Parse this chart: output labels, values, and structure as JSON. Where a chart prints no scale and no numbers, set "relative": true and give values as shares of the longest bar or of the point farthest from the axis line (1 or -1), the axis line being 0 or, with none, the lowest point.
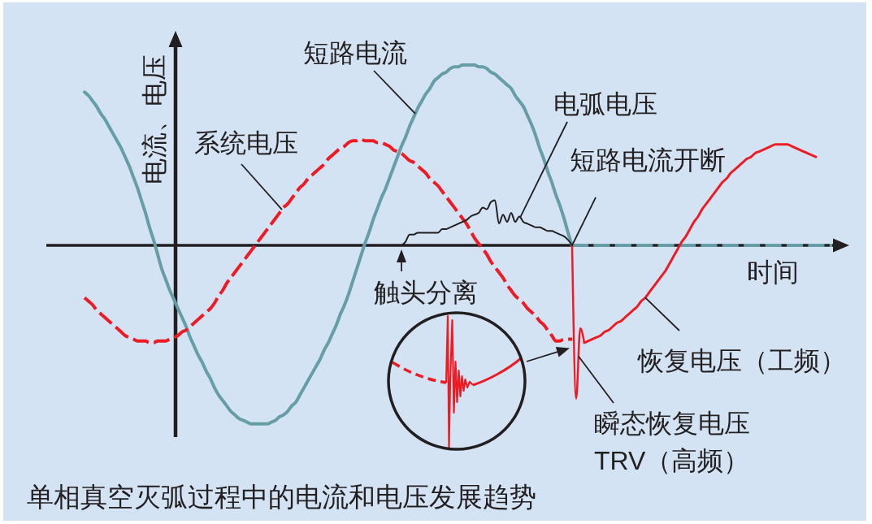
{
  "chart_data": {
    "type": "line",
    "relative": true,
    "title": "单相真空灭弧过程中的电流和电压发展趋势",
    "xlabel": "时间",
    "ylabel": "电流、电压",
    "categories": [
      null,
      null,
      null,
      null,
      null,
      null,
      null,
      null,
      null,
      null,
      null,
      null,
      null,
      null,
      null,
      null,
      null,
      null,
      null,
      null,
      null,
      null,
      null,
      null,
      null,
      null,
      null,
      null,
      null,
      null,
      null,
      null,
      null,
      null,
      null,
      null,
      null,
      null,
      null,
      null,
      null,
      null,
      null,
      null,
      null,
      null,
      null,
      null,
      null,
      null,
      null,
      null,
      null,
      null,
      null,
      null,
      null,
      null,
      null,
      null,
      null,
      null,
      null,
      null,
      null,
      null,
      null,
      null,
      null,
      null,
      null,
      null,
      null,
      null,
      null,
      null,
      null,
      null,
      null,
      null,
      null,
      null,
      null,
      null,
      null,
      null,
      null,
      null,
      null,
      null,
      null,
      null,
      null,
      null,
      null,
      null,
      null,
      null,
      null,
      null,
      null,
      null,
      null,
      null,
      null,
      null,
      null,
      null,
      null,
      null,
      null,
      null,
      null,
      null,
      null,
      null,
      null,
      null,
      null,
      null,
      null,
      null,
      null,
      null,
      null,
      null,
      null,
      null,
      null,
      null,
      null,
      null,
      null,
      null,
      null,
      null,
      null,
      null,
      null,
      null,
      null,
      null,
      null,
      null,
      null,
      null,
      null,
      null,
      null,
      null,
      null,
      null,
      null,
      null,
      null,
      null,
      null,
      null,
      null,
      null,
      null,
      null,
      null,
      null,
      null,
      null,
      null,
      null,
      null,
      null,
      null,
      null,
      null,
      null,
      null,
      null,
      null,
      null,
      null,
      null,
      null,
      null,
      null,
      null,
      null,
      null,
      null,
      null,
      null,
      null,
      null,
      null,
      null,
      null,
      null,
      null,
      null,
      null
    ],
    "series": [
      {
        "name": "短路电流",
        "color": "#659ea6",
        "line_style": "solid",
        "values": [
          null,
          null,
          null,
          null,
          null,
          null,
          null,
          null,
          null,
          0.85,
          0.83,
          0.8,
          0.77,
          0.73,
          0.7,
          0.66,
          0.62,
          0.58,
          0.54,
          0.49,
          0.44,
          0.38,
          0.32,
          0.25,
          0.18,
          0.1,
          0.03,
          -0.05,
          -0.13,
          -0.19,
          -0.25,
          -0.3,
          -0.35,
          -0.4,
          -0.45,
          -0.51,
          -0.56,
          -0.61,
          -0.65,
          -0.7,
          -0.74,
          -0.79,
          -0.83,
          -0.86,
          -0.89,
          -0.92,
          -0.94,
          -0.96,
          -0.97,
          -0.98,
          -0.99,
          -0.99,
          -0.99,
          -0.99,
          -0.99,
          -0.98,
          -0.97,
          -0.95,
          -0.94,
          -0.92,
          -0.89,
          -0.87,
          -0.83,
          -0.79,
          -0.75,
          -0.71,
          -0.67,
          -0.63,
          -0.58,
          -0.54,
          -0.49,
          -0.44,
          -0.38,
          -0.33,
          -0.27,
          -0.2,
          -0.13,
          -0.06,
          0.01,
          0.07,
          0.14,
          0.2,
          0.26,
          0.31,
          0.37,
          0.43,
          0.49,
          0.55,
          0.6,
          0.66,
          0.71,
          0.76,
          0.8,
          0.84,
          0.87,
          0.91,
          0.93,
          0.95,
          0.96,
          0.98,
          0.99,
          0.99,
          1.0,
          1.0,
          1.0,
          1.0,
          0.99,
          0.99,
          0.98,
          0.96,
          0.95,
          0.93,
          0.91,
          0.89,
          0.87,
          0.83,
          0.8,
          0.77,
          0.72,
          0.67,
          0.61,
          0.54,
          0.48,
          0.41,
          0.35,
          0.28,
          0.22,
          0.15,
          0.07,
          0,
          null,
          null,
          null,
          null,
          null,
          null,
          null,
          null,
          null,
          null,
          null,
          null,
          null,
          null,
          null,
          null,
          null,
          null,
          null,
          null,
          null,
          null,
          null,
          null,
          null,
          null,
          null,
          null,
          null,
          null,
          null,
          null,
          null,
          null,
          null,
          null,
          null,
          null,
          null,
          null,
          null,
          null,
          null,
          null,
          null,
          null,
          null,
          null,
          null,
          null,
          null,
          null,
          null,
          null,
          null,
          null,
          null,
          null,
          null,
          null,
          null,
          null,
          null,
          null,
          null,
          null,
          null,
          null
        ]
      },
      {
        "color": "#659ea6",
        "line_style": "dashed",
        "values": [
          null,
          null,
          null,
          null,
          null,
          null,
          null,
          null,
          null,
          null,
          null,
          null,
          null,
          null,
          null,
          null,
          null,
          null,
          null,
          null,
          null,
          null,
          null,
          null,
          null,
          null,
          null,
          null,
          null,
          null,
          null,
          null,
          null,
          null,
          null,
          null,
          null,
          null,
          null,
          null,
          null,
          null,
          null,
          null,
          null,
          null,
          null,
          null,
          null,
          null,
          null,
          null,
          null,
          null,
          null,
          null,
          null,
          null,
          null,
          null,
          null,
          null,
          null,
          null,
          null,
          null,
          null,
          null,
          null,
          null,
          null,
          null,
          null,
          null,
          null,
          null,
          null,
          null,
          null,
          null,
          null,
          null,
          null,
          null,
          null,
          null,
          null,
          null,
          null,
          null,
          null,
          null,
          null,
          null,
          null,
          null,
          null,
          null,
          null,
          null,
          null,
          null,
          null,
          null,
          null,
          null,
          null,
          null,
          null,
          null,
          null,
          null,
          null,
          null,
          null,
          null,
          null,
          null,
          null,
          null,
          null,
          null,
          null,
          null,
          null,
          null,
          null,
          null,
          null,
          0,
          0,
          0,
          0,
          0,
          0,
          0,
          0,
          0,
          0,
          0,
          0,
          0,
          0,
          0,
          0,
          0,
          0,
          0,
          0,
          0,
          0,
          0,
          0,
          0,
          0,
          0,
          0,
          0,
          0,
          0,
          0,
          0,
          0,
          0,
          0,
          0,
          0,
          0,
          0,
          0,
          0,
          0,
          0,
          0,
          0,
          0,
          0,
          0,
          0,
          0,
          0,
          0,
          0,
          0,
          0,
          0,
          0,
          0,
          0,
          0,
          0,
          0,
          0,
          0,
          null,
          null,
          null,
          null
        ]
      },
      {
        "name": "系统电压",
        "color": "#ed1c24",
        "line_style": "dashed",
        "values": [
          null,
          null,
          null,
          null,
          null,
          null,
          null,
          null,
          null,
          -0.29,
          -0.31,
          -0.33,
          -0.36,
          -0.38,
          -0.4,
          -0.42,
          -0.44,
          -0.46,
          -0.48,
          -0.5,
          -0.51,
          -0.52,
          -0.53,
          -0.53,
          -0.53,
          -0.54,
          -0.54,
          -0.53,
          -0.53,
          -0.53,
          -0.52,
          -0.51,
          -0.5,
          -0.48,
          -0.47,
          -0.45,
          -0.43,
          -0.41,
          -0.39,
          -0.37,
          -0.35,
          -0.32,
          -0.28,
          -0.25,
          -0.21,
          -0.18,
          -0.15,
          -0.12,
          -0.09,
          -0.06,
          -0.03,
          0,
          0.03,
          0.06,
          0.09,
          0.12,
          0.15,
          0.18,
          0.21,
          0.23,
          0.26,
          0.29,
          0.32,
          0.34,
          0.37,
          0.39,
          0.41,
          0.43,
          0.45,
          0.48,
          0.5,
          0.52,
          0.54,
          0.55,
          0.57,
          0.58,
          0.58,
          0.59,
          0.58,
          0.58,
          0.58,
          0.57,
          0.57,
          0.56,
          0.55,
          0.53,
          0.52,
          0.51,
          0.49,
          0.47,
          0.46,
          0.44,
          0.42,
          0.4,
          0.37,
          0.35,
          0.33,
          0.3,
          0.27,
          0.24,
          0.21,
          0.18,
          0.15,
          0.12,
          0.08,
          0.04,
          0.01,
          -0.02,
          -0.05,
          -0.09,
          -0.12,
          -0.15,
          -0.18,
          -0.22,
          -0.25,
          -0.28,
          -0.3,
          -0.32,
          -0.35,
          -0.37,
          -0.39,
          -0.42,
          -0.44,
          -0.47,
          -0.5,
          -0.53,
          -0.53,
          -0.52,
          -0.52,
          -0.52,
          null,
          null,
          null,
          null,
          null,
          null,
          null,
          null,
          null,
          null,
          null,
          null,
          null,
          null,
          null,
          null,
          null,
          null,
          null,
          null,
          null,
          null,
          null,
          null,
          null,
          null,
          null,
          null,
          null,
          null,
          null,
          null,
          null,
          null,
          null,
          null,
          null,
          null,
          null,
          null,
          null,
          null,
          null,
          null,
          null,
          null,
          null,
          null,
          null,
          null,
          null,
          null,
          null,
          null,
          null,
          null,
          null,
          null,
          null,
          null,
          null,
          null,
          null,
          null,
          null,
          null,
          null,
          null
        ]
      },
      {
        "color": "#ed1c24",
        "line_style": "solid",
        "values": [
          null,
          null,
          null,
          null,
          null,
          null,
          null,
          null,
          null,
          null,
          null,
          null,
          null,
          null,
          null,
          null,
          null,
          null,
          null,
          null,
          null,
          null,
          null,
          null,
          null,
          null,
          null,
          null,
          null,
          null,
          null,
          null,
          null,
          null,
          null,
          null,
          null,
          null,
          null,
          null,
          null,
          null,
          null,
          null,
          null,
          null,
          null,
          null,
          null,
          null,
          null,
          null,
          null,
          null,
          null,
          null,
          null,
          null,
          null,
          null,
          null,
          null,
          null,
          null,
          null,
          null,
          null,
          null,
          null,
          null,
          null,
          null,
          null,
          null,
          null,
          null,
          null,
          null,
          null,
          null,
          null,
          null,
          null,
          null,
          null,
          null,
          null,
          null,
          null,
          null,
          null,
          null,
          null,
          null,
          null,
          null,
          null,
          null,
          null,
          null,
          null,
          null,
          null,
          null,
          null,
          null,
          null,
          null,
          null,
          null,
          null,
          null,
          null,
          null,
          null,
          null,
          null,
          null,
          null,
          null,
          null,
          null,
          null,
          null,
          null,
          null,
          null,
          null,
          null,
          null,
          null,
          null,
          -0.54,
          -0.53,
          -0.52,
          -0.51,
          -0.5,
          -0.48,
          -0.47,
          -0.45,
          -0.43,
          -0.42,
          -0.4,
          -0.38,
          -0.36,
          -0.34,
          -0.31,
          -0.29,
          -0.26,
          -0.23,
          -0.2,
          -0.17,
          -0.14,
          -0.1,
          -0.06,
          -0.02,
          0.02,
          0.05,
          0.09,
          0.13,
          0.16,
          0.2,
          0.23,
          0.26,
          0.29,
          0.32,
          0.35,
          0.37,
          0.4,
          0.42,
          0.44,
          0.46,
          0.48,
          0.49,
          0.51,
          0.52,
          0.53,
          0.54,
          0.55,
          0.56,
          0.56,
          0.56,
          0.56,
          0.55,
          0.54,
          0.53,
          0.52,
          0.51,
          0.5,
          0.49,
          null,
          null,
          null,
          null,
          null,
          null,
          null,
          null
        ]
      },
      {
        "color": "#ed1c24",
        "line_style": "solid",
        "values": [
          null,
          null,
          null,
          null,
          null,
          null,
          null,
          null,
          null,
          null,
          null,
          null,
          null,
          null,
          null,
          null,
          null,
          null,
          null,
          null,
          null,
          null,
          null,
          null,
          null,
          null,
          null,
          null,
          null,
          null,
          null,
          null,
          null,
          null,
          null,
          null,
          null,
          null,
          null,
          null,
          null,
          null,
          null,
          null,
          null,
          null,
          null,
          null,
          null,
          null,
          null,
          null,
          null,
          null,
          null,
          null,
          null,
          null,
          null,
          null,
          null,
          null,
          null,
          null,
          null,
          null,
          null,
          null,
          null,
          null,
          null,
          null,
          null,
          null,
          null,
          null,
          null,
          null,
          null,
          null,
          null,
          null,
          null,
          null,
          null,
          null,
          null,
          null,
          null,
          null,
          null,
          null,
          null,
          null,
          null,
          null,
          null,
          null,
          null,
          null,
          null,
          null,
          null,
          null,
          null,
          null,
          null,
          null,
          null,
          null,
          null,
          null,
          null,
          null,
          null,
          null,
          null,
          null,
          null,
          null,
          null,
          null,
          null,
          null,
          null,
          null,
          null,
          null,
          null,
          0,
          -0.85,
          -0.46,
          -0.54,
          null,
          null,
          null,
          null,
          null,
          null,
          null,
          null,
          null,
          null,
          null,
          null,
          null,
          null,
          null,
          null,
          null,
          null,
          null,
          null,
          null,
          null,
          null,
          null,
          null,
          null,
          null,
          null,
          null,
          null,
          null,
          null,
          null,
          null,
          null,
          null,
          null,
          null,
          null,
          null,
          null,
          null,
          null,
          null,
          null,
          null,
          null,
          null,
          null,
          null,
          null,
          null,
          null,
          null,
          null,
          null,
          null,
          null,
          null,
          null,
          null,
          null,
          null,
          null,
          null
        ]
      },
      {
        "name": "电弧电压",
        "color": "#231f20",
        "line_style": "solid",
        "values": [
          null,
          null,
          null,
          null,
          null,
          null,
          null,
          null,
          null,
          null,
          null,
          null,
          null,
          null,
          null,
          null,
          null,
          null,
          null,
          null,
          null,
          null,
          null,
          null,
          null,
          null,
          null,
          null,
          null,
          null,
          null,
          null,
          null,
          null,
          null,
          null,
          null,
          null,
          null,
          null,
          null,
          null,
          null,
          null,
          null,
          null,
          null,
          null,
          null,
          null,
          null,
          null,
          null,
          null,
          null,
          null,
          null,
          null,
          null,
          null,
          null,
          null,
          null,
          null,
          null,
          null,
          null,
          null,
          null,
          null,
          null,
          null,
          null,
          null,
          null,
          null,
          null,
          null,
          null,
          null,
          null,
          null,
          null,
          null,
          null,
          null,
          null,
          0,
          0.02,
          0.06,
          0.06,
          0.07,
          0.07,
          0.07,
          0.07,
          0.07,
          0.07,
          0.09,
          0.09,
          0.1,
          0.11,
          0.12,
          0.13,
          0.14,
          0.16,
          0.17,
          0.18,
          0.21,
          0.2,
          0.24,
          0.25,
          0.12,
          0.17,
          0.13,
          0.18,
          0.13,
          0.16,
          0.13,
          0.12,
          0.11,
          0.1,
          0.1,
          0.09,
          0.08,
          0.08,
          0.07,
          0.06,
          0.05,
          0.03,
          0,
          null,
          null,
          null,
          null,
          null,
          null,
          null,
          null,
          null,
          null,
          null,
          null,
          null,
          null,
          null,
          null,
          null,
          null,
          null,
          null,
          null,
          null,
          null,
          null,
          null,
          null,
          null,
          null,
          null,
          null,
          null,
          null,
          null,
          null,
          null,
          null,
          null,
          null,
          null,
          null,
          null,
          null,
          null,
          null,
          null,
          null,
          null,
          null,
          null,
          null,
          null,
          null,
          null,
          null,
          null,
          null,
          null,
          null,
          null,
          null,
          null,
          null,
          null,
          null,
          null,
          null,
          null,
          null
        ]
      }
    ],
    "annotations": [
      "触头分离",
      "短路电流开断",
      "瞬态恢复电压 TRV（高频）",
      "恢复电压（工频）"
    ]
  }
}
